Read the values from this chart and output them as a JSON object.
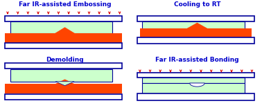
{
  "title_color": "#0000CC",
  "arrow_color": "#DD0000",
  "plate_fill": "#FFFFFF",
  "plate_edge": "#000099",
  "pmma_fill": "#CCFFCC",
  "mold_fill": "#FF4400",
  "panel_titles": [
    "Far IR-assisted Embossing",
    "Cooling to RT",
    "Demolding",
    "Far IR-assisted Bonding"
  ],
  "title_fontsize": 6.5,
  "bg_color": "#FFFFFF",
  "plate_lw": 1.2,
  "pmma_lw": 0.8
}
